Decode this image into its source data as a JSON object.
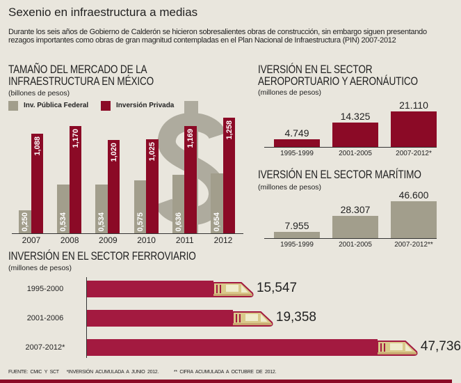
{
  "title": "Sexenio en infraestructura a medias",
  "intro": "Durante los seis años de Gobierno de Calderón se hicieron sobresalientes obras de construcción, sin embargo siguen presentando rezagos importantes como obras de gran magnitud contempladas en el Plan Nacional de Infraestructura (PIN) 2007-2012",
  "colors": {
    "red": "#8b0a26",
    "grey": "#a29e8c",
    "rail": "#a31a40",
    "background": "#e9e6dd"
  },
  "chart_data": [
    {
      "type": "bar",
      "title": "TAMAÑO DEL MERCADO DE LA INFRAESTRUCTURA EN MÉXICO",
      "subtitle": "(billones de pesos)",
      "categories": [
        "2007",
        "2008",
        "2009",
        "2010",
        "2011",
        "2012"
      ],
      "series": [
        {
          "name": "Inv. Pública Federal",
          "values": [
            0.25,
            0.534,
            0.534,
            0.575,
            0.636,
            0.654
          ],
          "labels": [
            "0,250",
            "0,534",
            "0,534",
            "0,575",
            "0,636",
            "0,654"
          ]
        },
        {
          "name": "Inversión Privada",
          "values": [
            1.088,
            1.17,
            1.02,
            1.025,
            1.169,
            1.258
          ],
          "labels": [
            "1,088",
            "1,170",
            "1,020",
            "1,025",
            "1,169",
            "1,258"
          ]
        }
      ],
      "legend": "top-left",
      "grid": false,
      "decoration": "dollar-sign"
    },
    {
      "type": "bar",
      "title": "IVERSIÓN EN EL SECTOR AEROPORTUARIO Y AERONÁUTICO",
      "subtitle": "(millones de pesos)",
      "categories": [
        "1995-1999",
        "2001-2005",
        "2007-2012*"
      ],
      "values": [
        4749,
        14325,
        21110
      ],
      "labels": [
        "4.749",
        "14.325",
        "21.110"
      ]
    },
    {
      "type": "bar",
      "title": "IVERSIÓN EN EL SECTOR MARÍTIMO",
      "subtitle": "(millones de pesos)",
      "categories": [
        "1995-1999",
        "2001-2005",
        "2007-2012**"
      ],
      "values": [
        7955,
        28307,
        46600
      ],
      "labels": [
        "7.955",
        "28.307",
        "46.600"
      ]
    },
    {
      "type": "bar",
      "orientation": "horizontal",
      "title": "INVERSIÓN EN EL SECTOR FERROVIARIO",
      "subtitle": "(millones de pesos)",
      "categories": [
        "1995-2000",
        "2001-2006",
        "2007-2012*"
      ],
      "values": [
        15547,
        19358,
        47736
      ],
      "labels": [
        "15,547",
        "19,358",
        "47,736"
      ],
      "mark_icon": "train-icon"
    }
  ],
  "footer": {
    "source": "FUENTE: CMIC Y SCT",
    "note1": "*INVERSIÓN ACUMULADA A JUNIO 2012.",
    "note2": "** CIFRA ACUMULADA A OCTUBRE DE 2012."
  }
}
